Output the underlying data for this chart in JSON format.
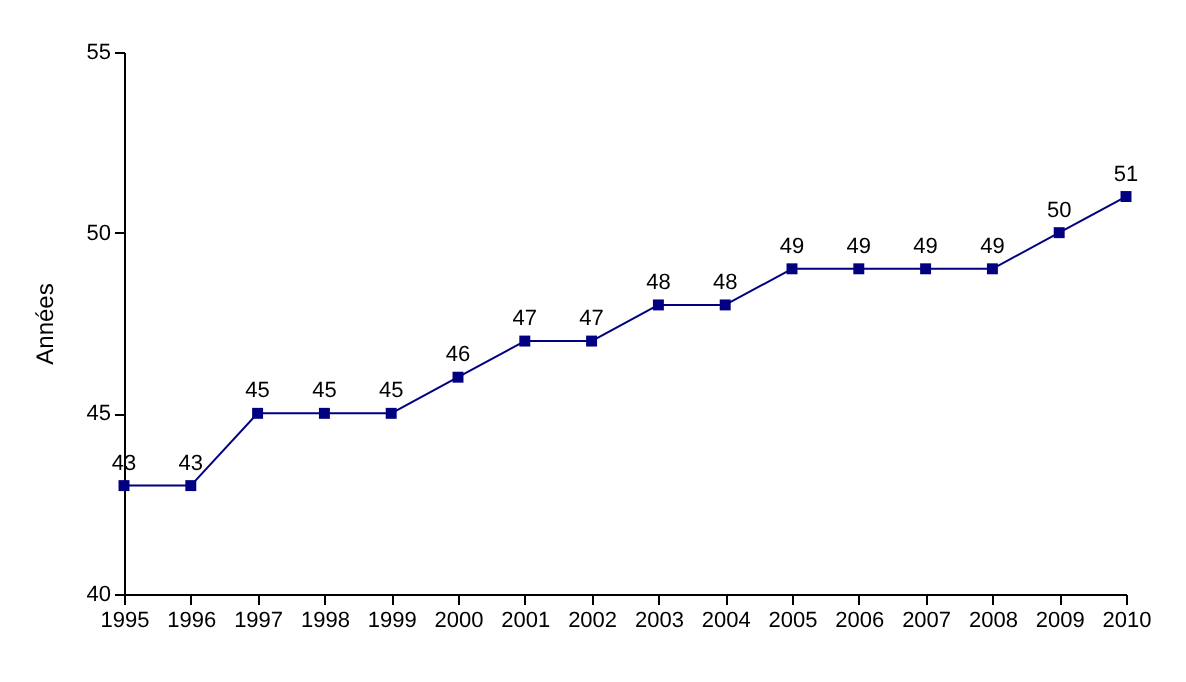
{
  "chart_data": {
    "type": "line",
    "ylabel": "Années",
    "categories": [
      "1995",
      "1996",
      "1997",
      "1998",
      "1999",
      "2000",
      "2001",
      "2002",
      "2003",
      "2004",
      "2005",
      "2006",
      "2007",
      "2008",
      "2009",
      "2010"
    ],
    "series": [
      {
        "color": "#000080",
        "values": [
          43,
          43,
          45,
          45,
          45,
          46,
          47,
          47,
          48,
          48,
          49,
          49,
          49,
          49,
          50,
          51
        ]
      }
    ],
    "ylim": [
      40,
      55
    ],
    "yticks": [
      40,
      45,
      50,
      55
    ],
    "grid": false,
    "legend": false,
    "marker": "square",
    "line_style": "solid",
    "data_labels": true
  }
}
